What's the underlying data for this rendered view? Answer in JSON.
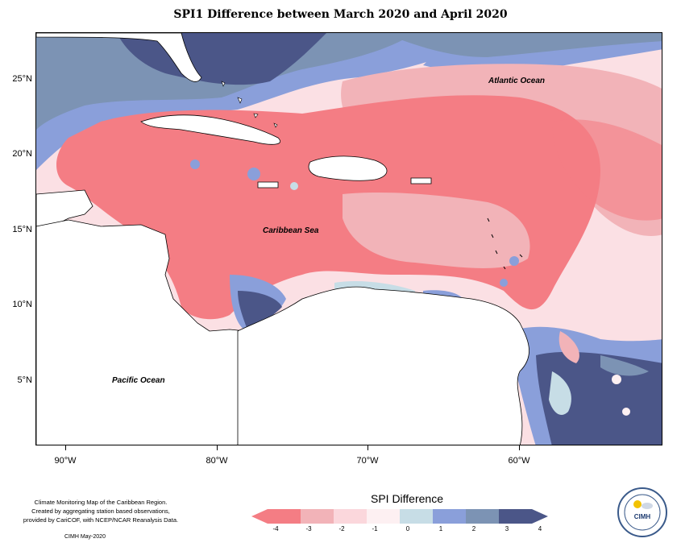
{
  "title": "SPI1 Difference between March 2020 and April 2020",
  "map": {
    "labels": {
      "atlantic": "Atlantic Ocean",
      "caribbean": "Caribbean Sea",
      "pacific": "Pacific Ocean"
    },
    "lat_ticks": [
      "25°N",
      "20°N",
      "15°N",
      "10°N",
      "5°N"
    ],
    "lon_ticks": [
      "90°W",
      "80°W",
      "70°W",
      "60°W"
    ]
  },
  "legend": {
    "title": "SPI Difference",
    "ticks": [
      "-4",
      "-3",
      "-2",
      "-1",
      "0",
      "1",
      "2",
      "3",
      "4"
    ],
    "colors": [
      "#f47d84",
      "#f2b3b8",
      "#fbd7dc",
      "#fdf0f2",
      "#c7dde6",
      "#8a9fda",
      "#7c93b4",
      "#4b5688"
    ]
  },
  "credits": {
    "line1": "Climate Monitoring Map of the Caribbean Region.",
    "line2": "Created by aggregating station based observations,",
    "line3": "provided by CariCOF, with NCEP/NCAR Reanalysis Data.",
    "line4": "CIMH May-2020"
  },
  "logo": {
    "text": "CIMH"
  }
}
